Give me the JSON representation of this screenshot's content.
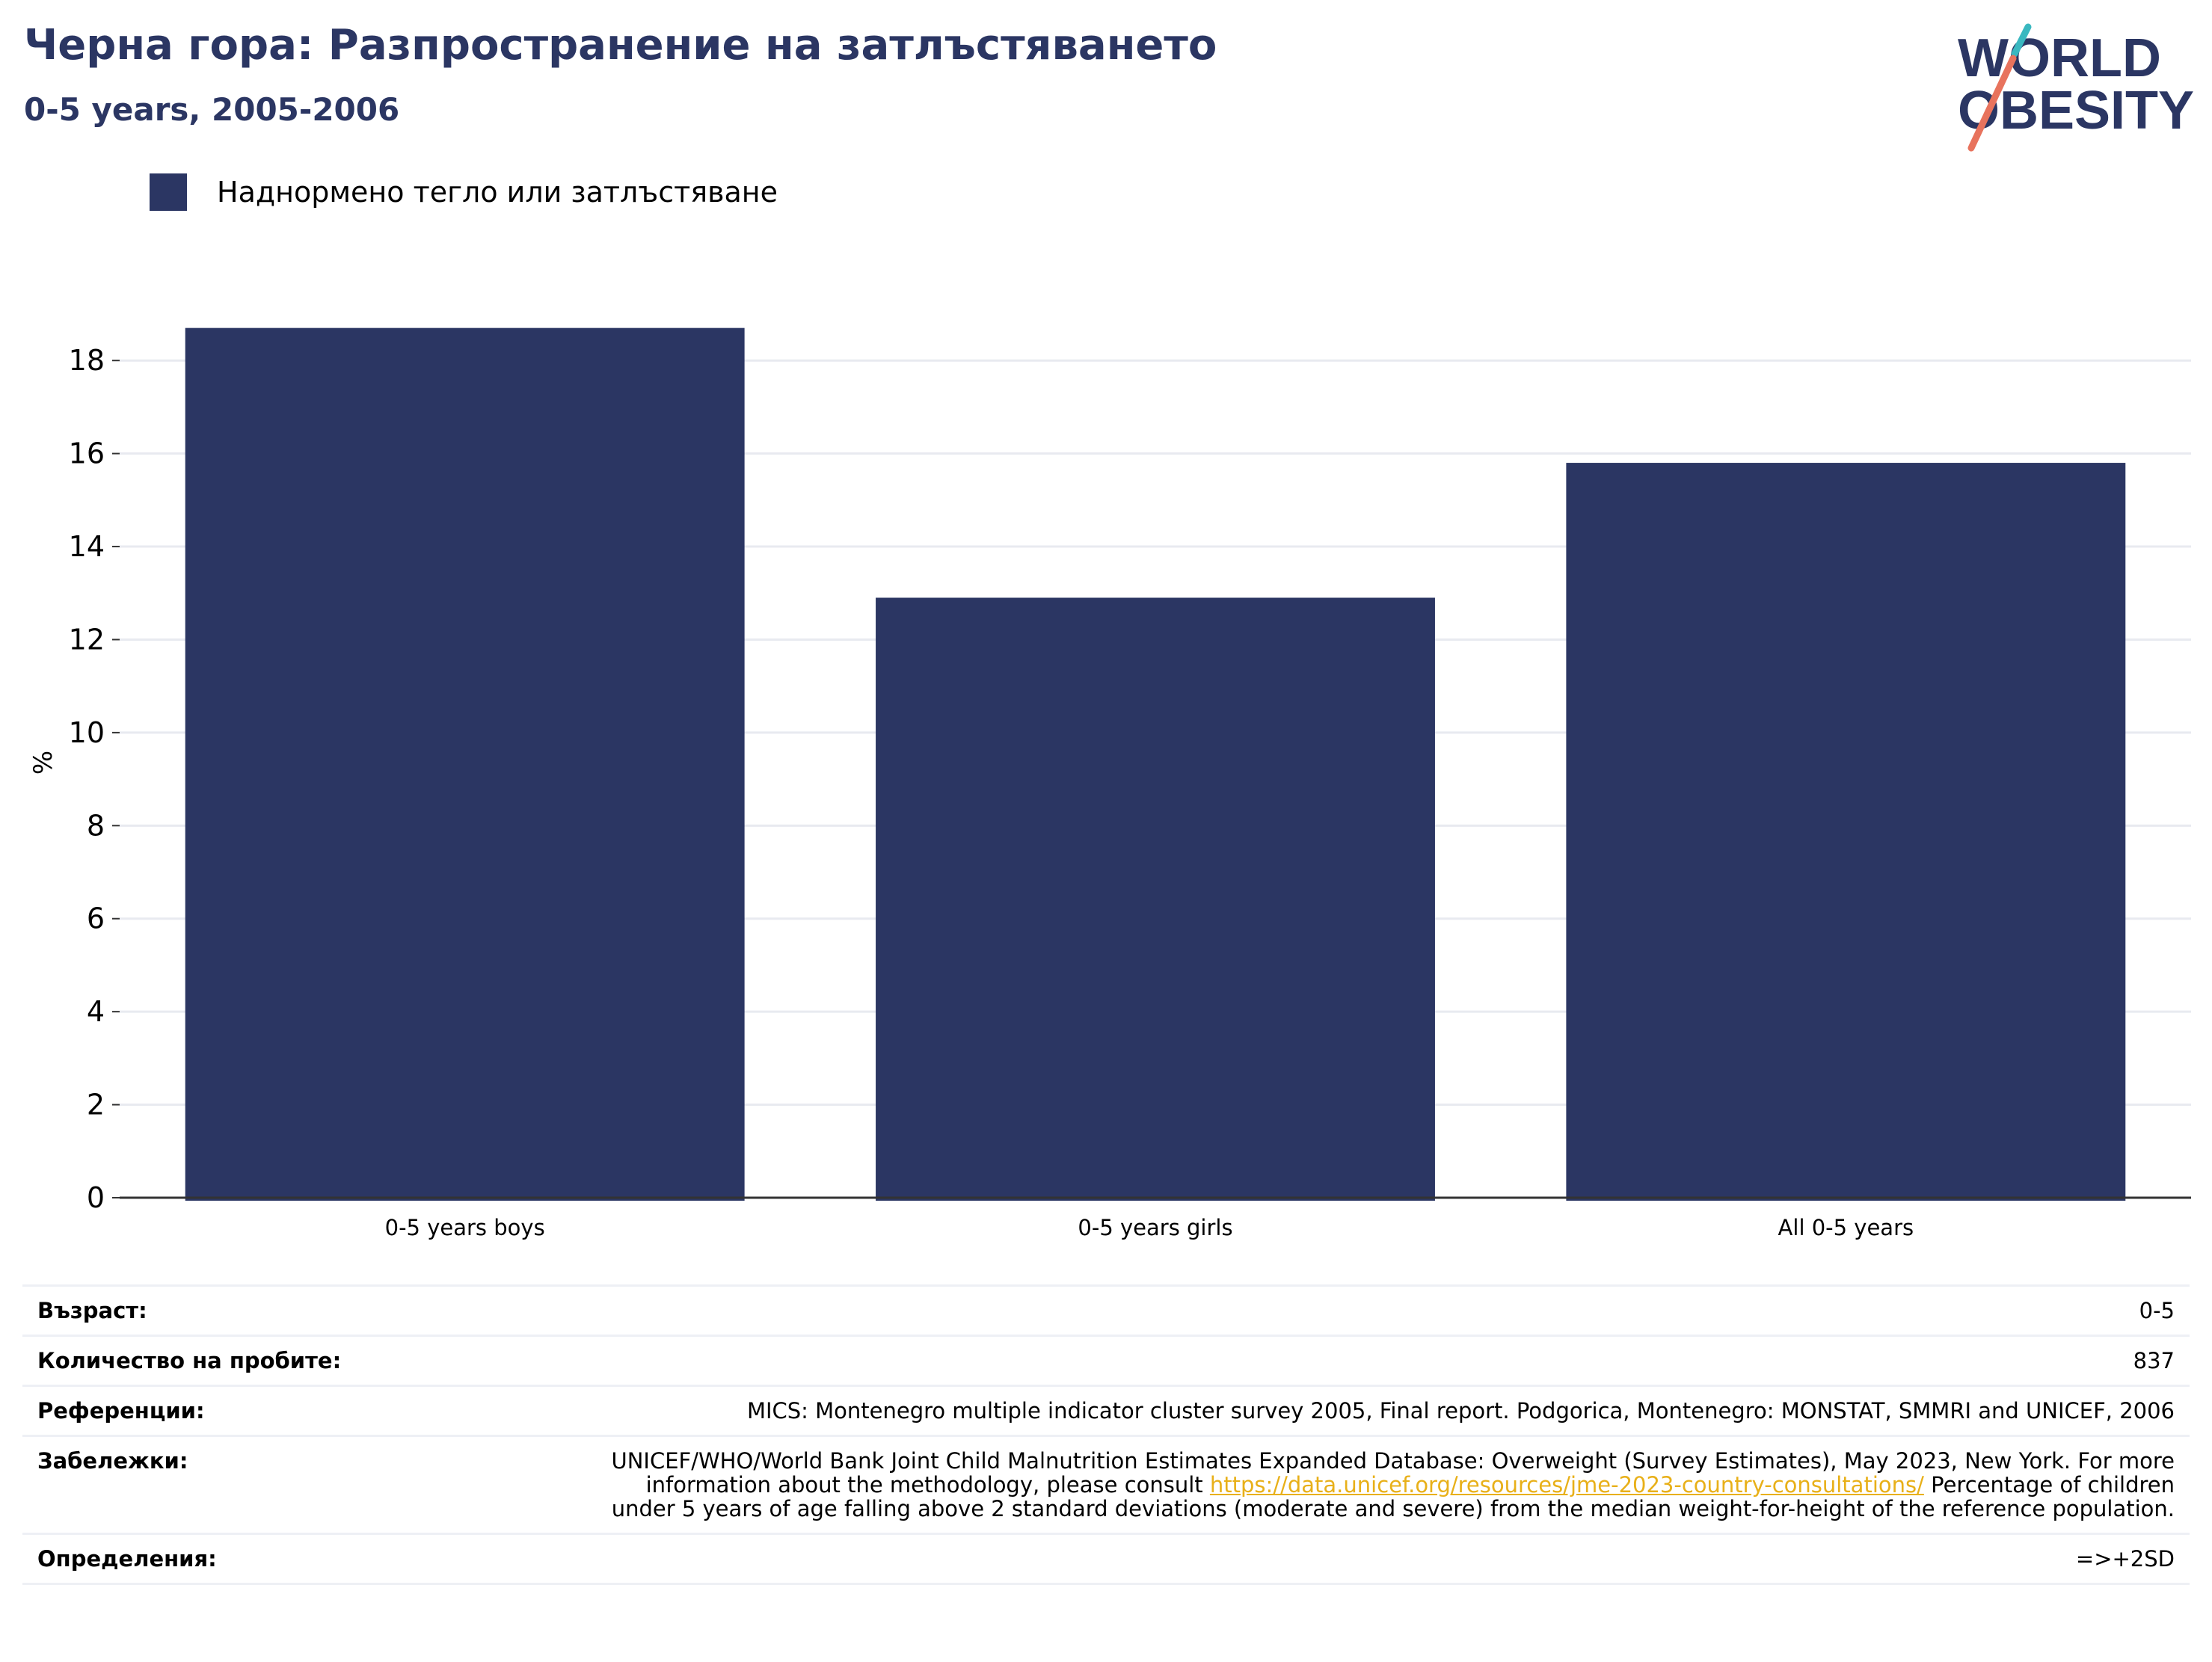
{
  "header": {
    "title": "Черна гора: Разпространение на затлъстяването",
    "subtitle": "0-5 years, 2005-2006"
  },
  "logo": {
    "line1": "WORLD",
    "line2": "OBESITY",
    "colors": {
      "text": "#2b3663",
      "slash_top": "#3ab8c0",
      "slash_bottom": "#e8735d"
    }
  },
  "legend": {
    "items": [
      {
        "label": "Наднормено тегло или затлъстяване",
        "color": "#2b3663"
      }
    ]
  },
  "chart_data": {
    "type": "bar",
    "categories": [
      "0-5 years boys",
      "0-5 years girls",
      "All 0-5 years"
    ],
    "series": [
      {
        "name": "Наднормено тегло или затлъстяване",
        "values": [
          18.7,
          12.9,
          15.8
        ],
        "color": "#2b3663"
      }
    ],
    "ylabel": "%",
    "ylim": [
      0,
      19
    ],
    "yticks": [
      0,
      2,
      4,
      6,
      8,
      10,
      12,
      14,
      16,
      18
    ],
    "grid": true
  },
  "info": {
    "age": {
      "label": "Възраст:",
      "value": "0-5"
    },
    "sample": {
      "label": "Количество на пробите:",
      "value": "837"
    },
    "references": {
      "label": "Референции:",
      "value": "MICS: Montenegro multiple indicator cluster survey 2005, Final report. Podgorica, Montenegro: MONSTAT, SMMRI and UNICEF, 2006"
    },
    "notes": {
      "label": "Забележки:",
      "text_before": "UNICEF/WHO/World Bank Joint Child Malnutrition Estimates Expanded Database: Overweight (Survey Estimates), May 2023, New York. For more information about the methodology, please consult ",
      "link": "https://data.unicef.org/resources/jme-2023-country-consultations/",
      "text_after": " Percentage of children under 5 years of age falling above 2 standard deviations (moderate and severe) from the median weight-for-height of the reference population."
    },
    "definitions": {
      "label": "Определения:",
      "value": "=>+2SD"
    }
  }
}
